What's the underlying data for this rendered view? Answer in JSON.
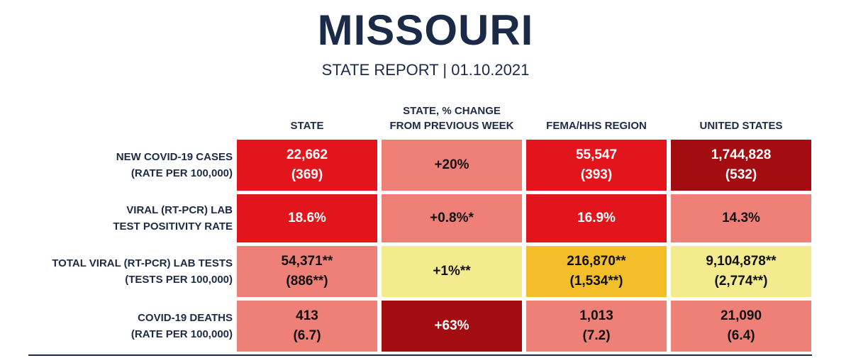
{
  "header": {
    "title": "MISSOURI",
    "subtitle": "STATE REPORT | 01.10.2021"
  },
  "table": {
    "columns": [
      [
        "STATE"
      ],
      [
        "STATE, % CHANGE",
        "FROM PREVIOUS WEEK"
      ],
      [
        "FEMA/HHS REGION"
      ],
      [
        "UNITED STATES"
      ]
    ],
    "rows": [
      {
        "label": [
          "NEW COVID-19 CASES",
          "(RATE PER 100,000)"
        ],
        "cells": [
          {
            "lines": [
              "22,662",
              "(369)"
            ],
            "color": "#e3151c"
          },
          {
            "lines": [
              "+20%"
            ],
            "color": "#ef8078"
          },
          {
            "lines": [
              "55,547",
              "(393)"
            ],
            "color": "#e3151c"
          },
          {
            "lines": [
              "1,744,828",
              "(532)"
            ],
            "color": "#a30d12"
          }
        ]
      },
      {
        "label": [
          "VIRAL (RT-PCR) LAB",
          "TEST POSITIVITY RATE"
        ],
        "cells": [
          {
            "lines": [
              "18.6%"
            ],
            "color": "#e3151c"
          },
          {
            "lines": [
              "+0.8%*"
            ],
            "color": "#ef8078"
          },
          {
            "lines": [
              "16.9%"
            ],
            "color": "#e3151c"
          },
          {
            "lines": [
              "14.3%"
            ],
            "color": "#ef8078"
          }
        ]
      },
      {
        "label": [
          "TOTAL VIRAL (RT-PCR) LAB TESTS",
          "(TESTS PER 100,000)"
        ],
        "cells": [
          {
            "lines": [
              "54,371**",
              "(886**)"
            ],
            "color": "#ef8078"
          },
          {
            "lines": [
              "+1%**"
            ],
            "color": "#f4eb8f"
          },
          {
            "lines": [
              "216,870**",
              "(1,534**)"
            ],
            "color": "#f4be2b"
          },
          {
            "lines": [
              "9,104,878**",
              "(2,774**)"
            ],
            "color": "#f4eb8f"
          }
        ]
      },
      {
        "label": [
          "COVID-19 DEATHS",
          "(RATE PER 100,000)"
        ],
        "cells": [
          {
            "lines": [
              "413",
              "(6.7)"
            ],
            "color": "#ef8078"
          },
          {
            "lines": [
              "+63%"
            ],
            "color": "#a30d12"
          },
          {
            "lines": [
              "1,013",
              "(7.2)"
            ],
            "color": "#ef8078"
          },
          {
            "lines": [
              "21,090",
              "(6.4)"
            ],
            "color": "#ef8078"
          }
        ]
      }
    ]
  }
}
